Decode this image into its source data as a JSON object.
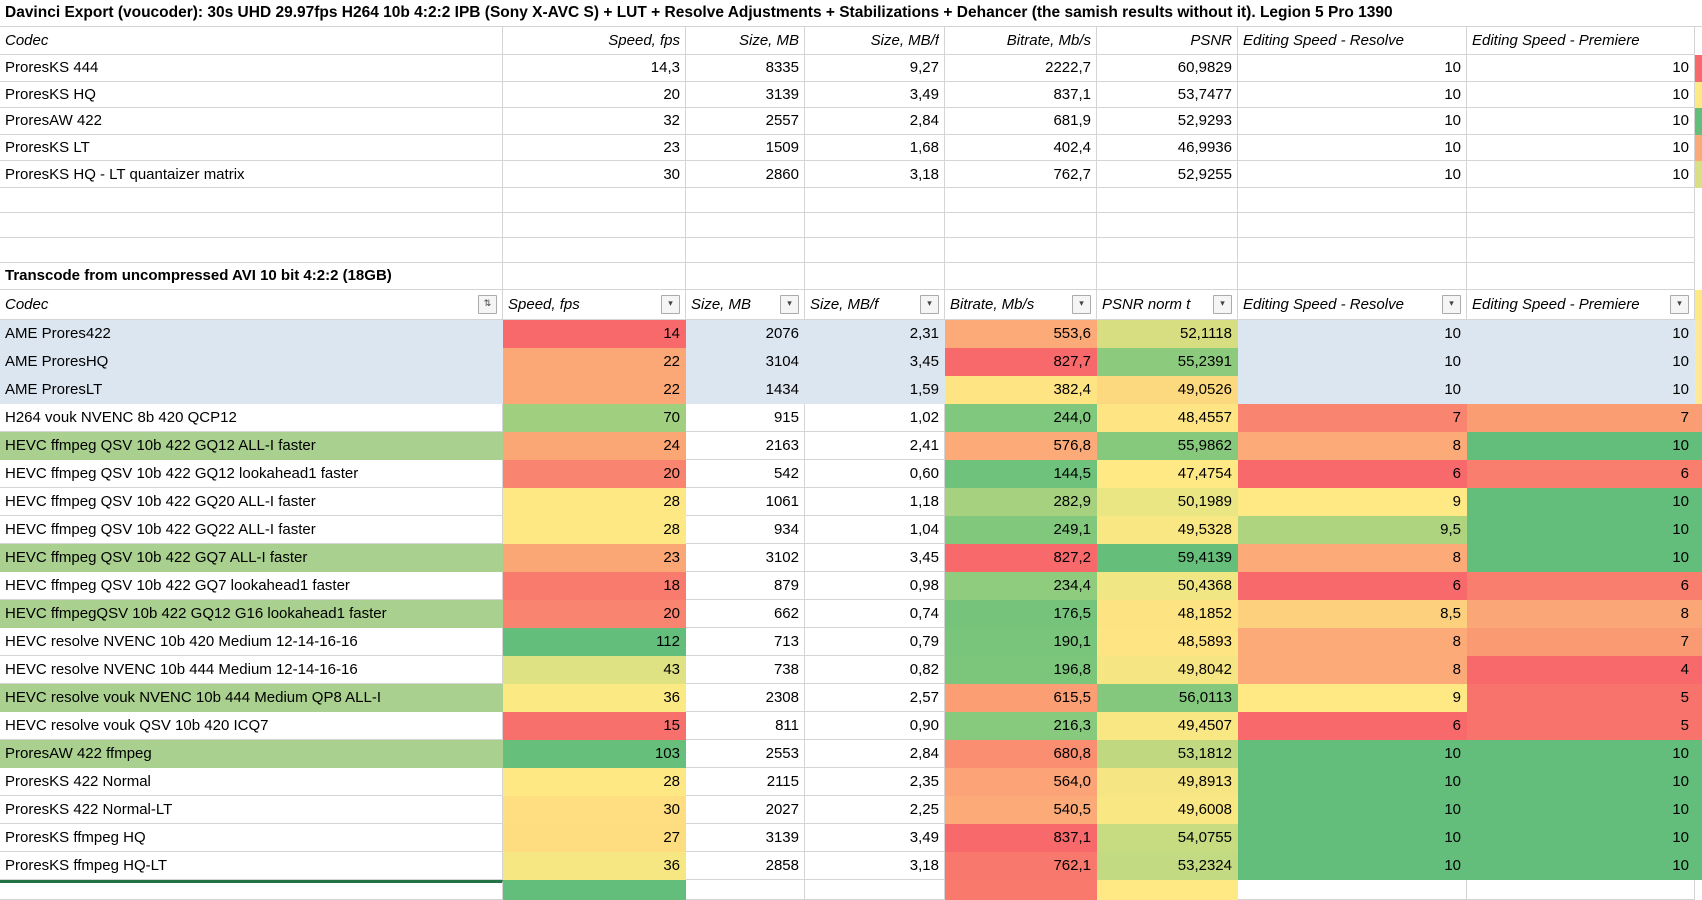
{
  "title": "Davinci Export (voucoder): 30s UHD 29.97fps H264 10b 4:2:2 IPB (Sony X-AVC S) + LUT + Resolve Adjustments + Stabilizations + Dehancer (the samish results without it). Legion 5 Pro 1390",
  "section2_title": "Transcode from uncompressed AVI 10 bit 4:2:2 (18GB)",
  "colors": {
    "row_highlight_blue": "#dce6f1",
    "codec_highlight_green": "#a9d08e",
    "gridline": "#d4d4d4",
    "partial_row_border": "#217346",
    "scale_red": "#f8696b",
    "scale_yellow": "#ffe984",
    "scale_green": "#63be7b"
  },
  "table1": {
    "headers": [
      "Codec",
      "Speed, fps",
      "Size, MB",
      "Size, MB/f",
      "Bitrate, Mb/s",
      "PSNR",
      "Editing Speed - Resolve",
      "Editing Speed - Premiere"
    ],
    "rows": [
      {
        "cells": [
          {
            "v": "ProresKS 444"
          },
          {
            "v": "14,3"
          },
          {
            "v": "8335"
          },
          {
            "v": "9,27"
          },
          {
            "v": "2222,7"
          },
          {
            "v": "60,9829"
          },
          {
            "v": "10"
          },
          {
            "v": "10"
          }
        ],
        "edge": "#f8696b"
      },
      {
        "cells": [
          {
            "v": "ProresKS HQ"
          },
          {
            "v": "20"
          },
          {
            "v": "3139"
          },
          {
            "v": "3,49"
          },
          {
            "v": "837,1"
          },
          {
            "v": "53,7477"
          },
          {
            "v": "10"
          },
          {
            "v": "10"
          }
        ],
        "edge": "#ffe984"
      },
      {
        "cells": [
          {
            "v": "ProresAW 422"
          },
          {
            "v": "32"
          },
          {
            "v": "2557"
          },
          {
            "v": "2,84"
          },
          {
            "v": "681,9"
          },
          {
            "v": "52,9293"
          },
          {
            "v": "10"
          },
          {
            "v": "10"
          }
        ],
        "edge": "#63be7b"
      },
      {
        "cells": [
          {
            "v": "ProresKS LT"
          },
          {
            "v": "23"
          },
          {
            "v": "1509"
          },
          {
            "v": "1,68"
          },
          {
            "v": "402,4"
          },
          {
            "v": "46,9936"
          },
          {
            "v": "10"
          },
          {
            "v": "10"
          }
        ],
        "edge": "#fba977"
      },
      {
        "cells": [
          {
            "v": "ProresKS HQ - LT quantaizer matrix"
          },
          {
            "v": "30"
          },
          {
            "v": "2860"
          },
          {
            "v": "3,18"
          },
          {
            "v": "762,7"
          },
          {
            "v": "52,9255"
          },
          {
            "v": "10"
          },
          {
            "v": "10"
          }
        ],
        "edge": "#d9df82"
      }
    ]
  },
  "table2": {
    "headers": [
      {
        "label": "Codec",
        "filter": "sort"
      },
      {
        "label": "Speed, fps",
        "filter": "menu"
      },
      {
        "label": "Size, MB",
        "filter": "menu"
      },
      {
        "label": "Size, MB/f",
        "filter": "menu"
      },
      {
        "label": "Bitrate, Mb/s",
        "filter": "menu"
      },
      {
        "label": "PSNR norm t",
        "filter": "menu"
      },
      {
        "label": "Editing Speed - Resolve",
        "filter": "menu"
      },
      {
        "label": "Editing Speed - Premiere",
        "filter": "menu"
      }
    ],
    "header_edge": "#ffe984",
    "rows": [
      {
        "cells": [
          {
            "v": "AME Prores422",
            "bg": "#dce6f1"
          },
          {
            "v": "14",
            "bg": "#f8696b"
          },
          {
            "v": "2076",
            "bg": "#dce6f1"
          },
          {
            "v": "2,31",
            "bg": "#dce6f1"
          },
          {
            "v": "553,6",
            "bg": "#fcab78"
          },
          {
            "v": "52,1118",
            "bg": "#d7de81"
          },
          {
            "v": "10",
            "bg": "#dce6f1"
          },
          {
            "v": "10",
            "bg": "#dce6f1"
          }
        ],
        "edge": "#ffe994"
      },
      {
        "cells": [
          {
            "v": "AME ProresHQ",
            "bg": "#dce6f1"
          },
          {
            "v": "22",
            "bg": "#fca876"
          },
          {
            "v": "3104",
            "bg": "#dce6f1"
          },
          {
            "v": "3,45",
            "bg": "#dce6f1"
          },
          {
            "v": "827,7",
            "bg": "#f8696b"
          },
          {
            "v": "55,2391",
            "bg": "#8cca7e"
          },
          {
            "v": "10",
            "bg": "#dce6f1"
          },
          {
            "v": "10",
            "bg": "#dce6f1"
          }
        ],
        "edge": "#ffe994"
      },
      {
        "cells": [
          {
            "v": "AME ProresLT",
            "bg": "#dce6f1"
          },
          {
            "v": "22",
            "bg": "#fca876"
          },
          {
            "v": "1434",
            "bg": "#dce6f1"
          },
          {
            "v": "1,59",
            "bg": "#dce6f1"
          },
          {
            "v": "382,4",
            "bg": "#fee482"
          },
          {
            "v": "49,0526",
            "bg": "#fcd97f"
          },
          {
            "v": "10",
            "bg": "#dce6f1"
          },
          {
            "v": "10",
            "bg": "#dce6f1"
          }
        ],
        "edge": "#ffe994"
      },
      {
        "cells": [
          {
            "v": "H264 vouk NVENC 8b 420 QCP12"
          },
          {
            "v": "70",
            "bg": "#a0d07f"
          },
          {
            "v": "915"
          },
          {
            "v": "1,02"
          },
          {
            "v": "244,0",
            "bg": "#7fc87d"
          },
          {
            "v": "48,4557",
            "bg": "#fee482"
          },
          {
            "v": "7",
            "bg": "#f98570"
          },
          {
            "v": "7",
            "bg": "#fa9d73"
          }
        ],
        "edge": "#fa9d73"
      },
      {
        "cells": [
          {
            "v": "HEVC ffmpeg QSV 10b 422 GQ12 ALL-I faster",
            "bg": "#a9d08e"
          },
          {
            "v": "24",
            "bg": "#fba675"
          },
          {
            "v": "2163"
          },
          {
            "v": "2,41"
          },
          {
            "v": "576,8",
            "bg": "#fcaa77"
          },
          {
            "v": "55,9862",
            "bg": "#86c97d"
          },
          {
            "v": "8",
            "bg": "#fcaa78"
          },
          {
            "v": "10",
            "bg": "#63be7b"
          }
        ],
        "edge": "#63be7b"
      },
      {
        "cells": [
          {
            "v": "HEVC ffmpeg QSV 10b 422 GQ12 lookahead1 faster"
          },
          {
            "v": "20",
            "bg": "#f98570"
          },
          {
            "v": "542"
          },
          {
            "v": "0,60"
          },
          {
            "v": "144,5",
            "bg": "#6ec27b"
          },
          {
            "v": "47,4754",
            "bg": "#ffe984"
          },
          {
            "v": "6",
            "bg": "#f8696b"
          },
          {
            "v": "6",
            "bg": "#f97e6d"
          }
        ],
        "edge": "#f97e6d"
      },
      {
        "cells": [
          {
            "v": "HEVC ffmpeg QSV 10b 422 GQ20 ALL-I faster"
          },
          {
            "v": "28",
            "bg": "#fee884"
          },
          {
            "v": "1061"
          },
          {
            "v": "1,18"
          },
          {
            "v": "282,9",
            "bg": "#a6d27f"
          },
          {
            "v": "50,1989",
            "bg": "#e9e683"
          },
          {
            "v": "9",
            "bg": "#ffe984"
          },
          {
            "v": "10",
            "bg": "#63be7b"
          }
        ],
        "edge": "#63be7b"
      },
      {
        "cells": [
          {
            "v": "HEVC ffmpeg QSV 10b 422 GQ22 ALL-I faster"
          },
          {
            "v": "28",
            "bg": "#fee884"
          },
          {
            "v": "934"
          },
          {
            "v": "1,04"
          },
          {
            "v": "249,1",
            "bg": "#81c87d"
          },
          {
            "v": "49,5328",
            "bg": "#f8e783"
          },
          {
            "v": "9,5",
            "bg": "#aed47f"
          },
          {
            "v": "10",
            "bg": "#63be7b"
          }
        ],
        "edge": "#63be7b"
      },
      {
        "cells": [
          {
            "v": "HEVC ffmpeg QSV 10b 422 GQ7 ALL-I faster",
            "bg": "#a9d08e"
          },
          {
            "v": "23",
            "bg": "#fba675"
          },
          {
            "v": "3102"
          },
          {
            "v": "3,45"
          },
          {
            "v": "827,2",
            "bg": "#f8696b"
          },
          {
            "v": "59,4139",
            "bg": "#65bf7b"
          },
          {
            "v": "8",
            "bg": "#fcaa78"
          },
          {
            "v": "10",
            "bg": "#63be7b"
          }
        ],
        "edge": "#63be7b"
      },
      {
        "cells": [
          {
            "v": "HEVC ffmpeg QSV 10b 422 GQ7 lookahead1 faster"
          },
          {
            "v": "18",
            "bg": "#f87b6d"
          },
          {
            "v": "879"
          },
          {
            "v": "0,98"
          },
          {
            "v": "234,4",
            "bg": "#8fcc7e"
          },
          {
            "v": "50,4368",
            "bg": "#f0e683"
          },
          {
            "v": "6",
            "bg": "#f8696b"
          },
          {
            "v": "6",
            "bg": "#f97e6d"
          }
        ],
        "edge": "#f97e6d"
      },
      {
        "cells": [
          {
            "v": "HEVC ffmpegQSV 10b 422 GQ12 G16 lookahead1 faster",
            "bg": "#a9d08e"
          },
          {
            "v": "20",
            "bg": "#f98570"
          },
          {
            "v": "662"
          },
          {
            "v": "0,74"
          },
          {
            "v": "176,5",
            "bg": "#76c47c"
          },
          {
            "v": "48,1852",
            "bg": "#fee383"
          },
          {
            "v": "8,5",
            "bg": "#fdd07e"
          },
          {
            "v": "8",
            "bg": "#fba677"
          }
        ],
        "edge": "#fba677"
      },
      {
        "cells": [
          {
            "v": "HEVC resolve NVENC 10b 420 Medium 12-14-16-16"
          },
          {
            "v": "112",
            "bg": "#63be7b"
          },
          {
            "v": "713"
          },
          {
            "v": "0,79"
          },
          {
            "v": "190,1",
            "bg": "#7ac57c"
          },
          {
            "v": "48,5893",
            "bg": "#fee482"
          },
          {
            "v": "8",
            "bg": "#fcaa78"
          },
          {
            "v": "7",
            "bg": "#fa9a73"
          }
        ],
        "edge": "#fa9a73"
      },
      {
        "cells": [
          {
            "v": "HEVC resolve NVENC 10b 444 Medium 12-14-16-16"
          },
          {
            "v": "43",
            "bg": "#dfe283"
          },
          {
            "v": "738"
          },
          {
            "v": "0,82"
          },
          {
            "v": "196,8",
            "bg": "#7cc67c"
          },
          {
            "v": "49,8042",
            "bg": "#f5e683"
          },
          {
            "v": "8",
            "bg": "#fcaa78"
          },
          {
            "v": "4",
            "bg": "#f8696b"
          }
        ],
        "edge": "#f8696b"
      },
      {
        "cells": [
          {
            "v": "HEVC resolve vouk NVENC 10b 444 Medium QP8 ALL-I",
            "bg": "#a9d08e"
          },
          {
            "v": "36",
            "bg": "#fbe983"
          },
          {
            "v": "2308"
          },
          {
            "v": "2,57"
          },
          {
            "v": "615,5",
            "bg": "#fb9e74"
          },
          {
            "v": "56,0113",
            "bg": "#83c87d"
          },
          {
            "v": "9",
            "bg": "#ffe984"
          },
          {
            "v": "5",
            "bg": "#f8736c"
          }
        ],
        "edge": "#f8736c"
      },
      {
        "cells": [
          {
            "v": "HEVC resolve vouk QSV 10b 420 ICQ7"
          },
          {
            "v": "15",
            "bg": "#f8706c"
          },
          {
            "v": "811"
          },
          {
            "v": "0,90"
          },
          {
            "v": "216,3",
            "bg": "#87ca7d"
          },
          {
            "v": "49,4507",
            "bg": "#f9e783"
          },
          {
            "v": "6",
            "bg": "#f8696b"
          },
          {
            "v": "5",
            "bg": "#f8736c"
          }
        ],
        "edge": "#f8736c"
      },
      {
        "cells": [
          {
            "v": "ProresAW 422 ffmpeg",
            "bg": "#a9d08e"
          },
          {
            "v": "103",
            "bg": "#66c07b"
          },
          {
            "v": "2553"
          },
          {
            "v": "2,84"
          },
          {
            "v": "680,8",
            "bg": "#fa8e70"
          },
          {
            "v": "53,1812",
            "bg": "#c0d981"
          },
          {
            "v": "10",
            "bg": "#63be7b"
          },
          {
            "v": "10",
            "bg": "#63be7b"
          }
        ],
        "edge": "#63be7b"
      },
      {
        "cells": [
          {
            "v": "ProresKS 422 Normal"
          },
          {
            "v": "28",
            "bg": "#fee884"
          },
          {
            "v": "2115"
          },
          {
            "v": "2,35"
          },
          {
            "v": "564,0",
            "bg": "#fca377"
          },
          {
            "v": "49,8913",
            "bg": "#f5e683"
          },
          {
            "v": "10",
            "bg": "#63be7b"
          },
          {
            "v": "10",
            "bg": "#63be7b"
          }
        ],
        "edge": "#63be7b"
      },
      {
        "cells": [
          {
            "v": "ProresKS 422 Normal-LT"
          },
          {
            "v": "30",
            "bg": "#fede80"
          },
          {
            "v": "2027"
          },
          {
            "v": "2,25"
          },
          {
            "v": "540,5",
            "bg": "#fcab78"
          },
          {
            "v": "49,6008",
            "bg": "#f9e783"
          },
          {
            "v": "10",
            "bg": "#63be7b"
          },
          {
            "v": "10",
            "bg": "#63be7b"
          }
        ],
        "edge": "#63be7b"
      },
      {
        "cells": [
          {
            "v": "ProresKS ffmpeg HQ"
          },
          {
            "v": "27",
            "bg": "#fedd80"
          },
          {
            "v": "3139"
          },
          {
            "v": "3,49"
          },
          {
            "v": "837,1",
            "bg": "#f8696b"
          },
          {
            "v": "54,0755",
            "bg": "#c7db81"
          },
          {
            "v": "10",
            "bg": "#63be7b"
          },
          {
            "v": "10",
            "bg": "#63be7b"
          }
        ],
        "edge": "#63be7b"
      },
      {
        "cells": [
          {
            "v": "ProresKS ffmpeg HQ-LT"
          },
          {
            "v": "36",
            "bg": "#f7e783"
          },
          {
            "v": "2858"
          },
          {
            "v": "3,18"
          },
          {
            "v": "762,1",
            "bg": "#f9786d"
          },
          {
            "v": "53,2324",
            "bg": "#c2da81"
          },
          {
            "v": "10",
            "bg": "#63be7b"
          },
          {
            "v": "10",
            "bg": "#63be7b"
          }
        ],
        "edge": "#63be7b"
      }
    ],
    "partial_row": {
      "bgs": [
        "#ffffff",
        "#63be7b",
        "#ffffff",
        "#ffffff",
        "#f9796d",
        "#ffe984",
        "#ffffff",
        "#ffffff"
      ],
      "edge": "#ffffff"
    }
  }
}
